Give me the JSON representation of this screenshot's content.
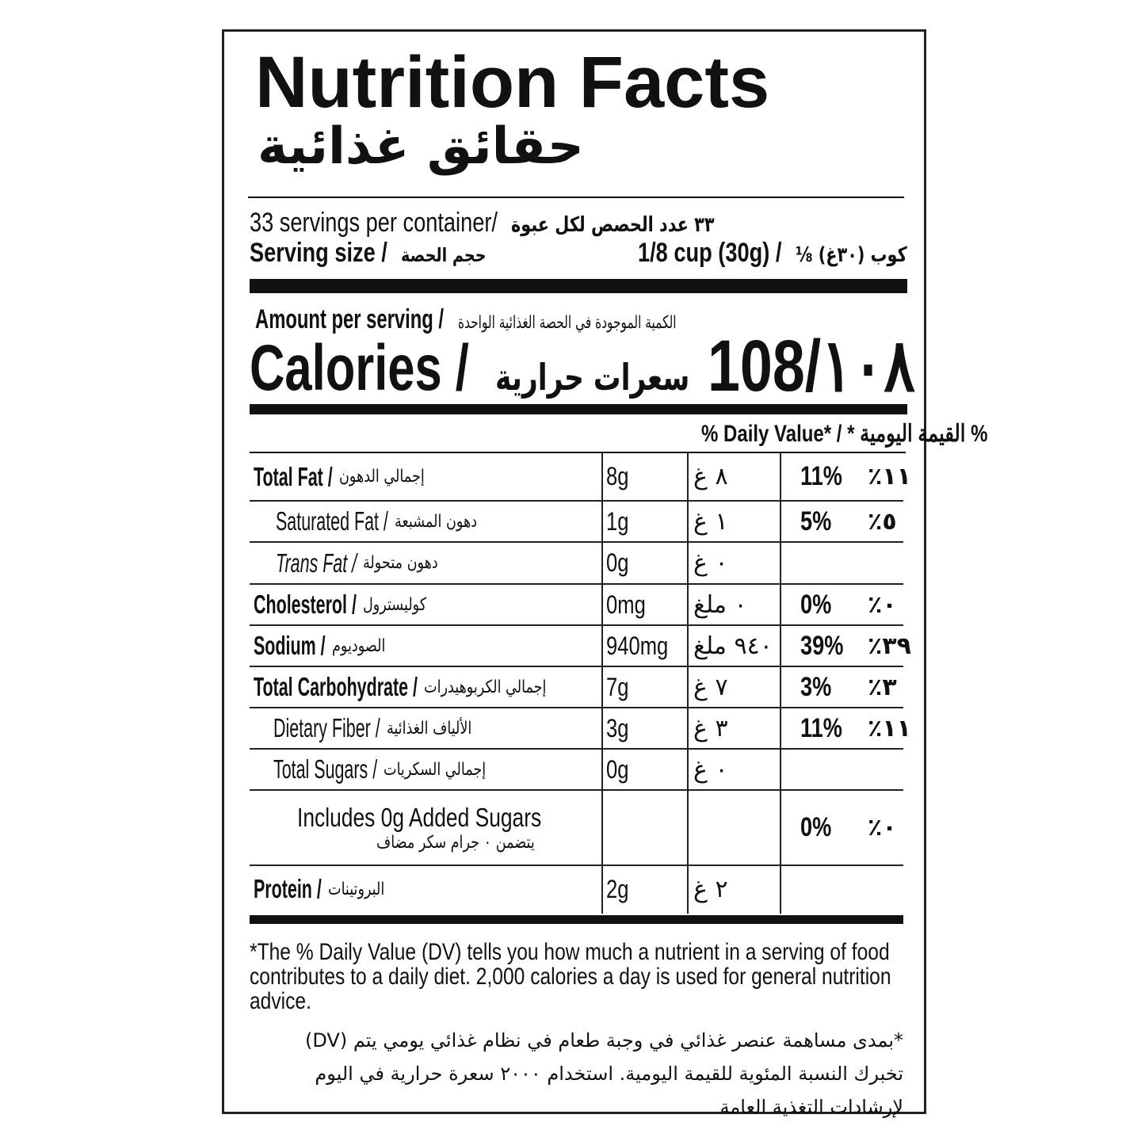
{
  "title": "Nutrition Facts",
  "title_ar": "حقائق غذائية",
  "servings": {
    "en": "33 servings per container/",
    "ar": "٣٣ عدد الحصص لكل عبوة"
  },
  "serving_size": {
    "label_en": "Serving size /",
    "label_ar": "حجم الحصة",
    "value_en": "1/8 cup (30g) /",
    "value_ar": "⅛ كوب (٣٠غ)"
  },
  "amount": {
    "en": "Amount per serving /",
    "ar": "الكمية الموجودة في الحصة الغذائية الواحدة"
  },
  "calories": {
    "label_en": "Calories /",
    "label_ar": "سعرات حرارية",
    "value": "108/١٠٨"
  },
  "dv_header": "% Daily Value* / * القيمة اليومية %",
  "rows": [
    {
      "en": "Total Fat /",
      "ar": "إجمالي الدهون",
      "amt": "8g",
      "amt_ar": "٨ غ",
      "pct": "11%",
      "pct_ar": "٪١١",
      "bold": true
    },
    {
      "en": "Saturated Fat /",
      "ar": "دهون المشبعة",
      "amt": "1g",
      "amt_ar": "١ غ",
      "pct": "5%",
      "pct_ar": "٪٥"
    },
    {
      "en": "Trans Fat /",
      "ar": "دهون متحولة",
      "amt": "0g",
      "amt_ar": "٠ غ",
      "pct": "",
      "pct_ar": ""
    },
    {
      "en": "Cholesterol /",
      "ar": "كوليسترول",
      "amt": "0mg",
      "amt_ar": "٠ ملغ",
      "pct": "0%",
      "pct_ar": "٪٠",
      "bold": true
    },
    {
      "en": "Sodium /",
      "ar": "الصوديوم",
      "amt": "940mg",
      "amt_ar": "٩٤٠ ملغ",
      "pct": "39%",
      "pct_ar": "٪٣٩",
      "bold": true
    },
    {
      "en": "Total Carbohydrate /",
      "ar": "إجمالي الكربوهيدرات",
      "amt": "7g",
      "amt_ar": "٧ غ",
      "pct": "3%",
      "pct_ar": "٪٣",
      "bold": true
    },
    {
      "en": "Dietary Fiber /",
      "ar": "الألياف الغذائية",
      "amt": "3g",
      "amt_ar": "٣ غ",
      "pct": "11%",
      "pct_ar": "٪١١"
    },
    {
      "en": "Total Sugars /",
      "ar": "إجمالي السكريات",
      "amt": "0g",
      "amt_ar": "٠ غ",
      "pct": "",
      "pct_ar": ""
    },
    {
      "en": "Includes 0g Added Sugars",
      "ar": "يتضمن ٠ جرام سكر مضاف",
      "amt": "",
      "amt_ar": "",
      "pct": "0%",
      "pct_ar": "٪٠"
    },
    {
      "en": "Protein /",
      "ar": "البروتينات",
      "amt": "2g",
      "amt_ar": "٢ غ",
      "pct": "",
      "pct_ar": "",
      "bold": true
    }
  ],
  "footnote_en": "*The % Daily Value (DV) tells you how much a nutrient in a serving of food contributes to a daily diet. 2,000 calories a day is used for general nutrition advice.",
  "footnote_ar": "*بمدى مساهمة عنصر غذائي في وجبة طعام في نظام غذائي يومي يتم (DV) تخبرك النسبة المئوية للقيمة اليومية. استخدام ٢٠٠٠ سعرة حرارية في اليوم لإرشادات التغذية العامة"
}
